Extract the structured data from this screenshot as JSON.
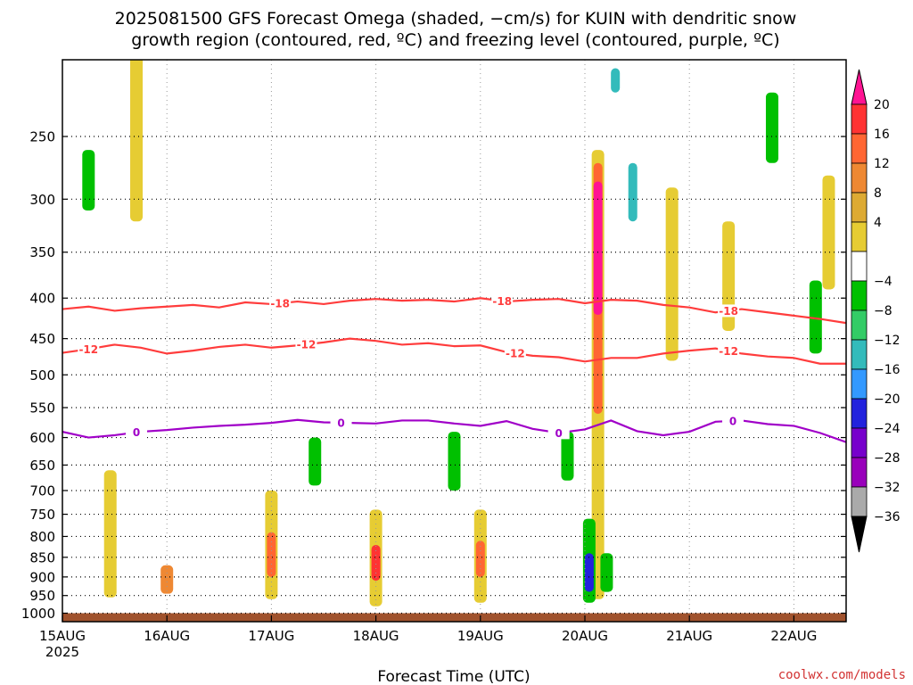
{
  "title": {
    "line1": "2025081500 GFS Forecast Omega (shaded, −cm/s) for KUIN with dendritic snow",
    "line2": "growth region (contoured, red, ºC) and freezing level (contoured, purple, ºC)"
  },
  "credit": "coolwx.com/models",
  "chart_data": {
    "type": "heatmap",
    "xlabel": "Forecast Time (UTC)",
    "x_ticks": [
      "15AUG",
      "16AUG",
      "17AUG",
      "18AUG",
      "19AUG",
      "20AUG",
      "21AUG",
      "22AUG"
    ],
    "x_tick_sub": "2025",
    "x_range_hours": [
      0,
      180
    ],
    "y_scale": "log-pressure",
    "y_range_hpa": [
      1025,
      200
    ],
    "y_ticks": [
      250,
      300,
      350,
      400,
      450,
      500,
      550,
      600,
      650,
      700,
      750,
      800,
      850,
      900,
      950,
      1000
    ],
    "grid": true,
    "colorbar": {
      "labels": [
        "20",
        "16",
        "12",
        "8",
        "4",
        "−4",
        "−8",
        "−12",
        "−16",
        "−20",
        "−24",
        "−28",
        "−32",
        "−36"
      ],
      "colors": [
        "#ff1493",
        "#ff3333",
        "#ff6633",
        "#ee8833",
        "#ddaa33",
        "#e6cc33",
        "#ffffff",
        "#00c000",
        "#33cc66",
        "#33bbbb",
        "#3399ff",
        "#2222dd",
        "#7700cc",
        "#9900bb",
        "#aaaaaa",
        "#000000"
      ]
    },
    "ground": {
      "pressure_hpa": 1000,
      "color": "#a0522d"
    },
    "contours": [
      {
        "level": "-18",
        "color": "#ff3c3c",
        "x_hours": [
          0,
          6,
          12,
          18,
          24,
          30,
          36,
          42,
          48,
          54,
          60,
          66,
          72,
          78,
          84,
          90,
          96,
          102,
          108,
          114,
          120,
          126,
          132,
          138,
          144,
          150,
          156,
          162,
          168,
          174,
          180
        ],
        "y_hpa": [
          413,
          410,
          415,
          412,
          410,
          408,
          411,
          405,
          407,
          404,
          407,
          403,
          401,
          403,
          402,
          404,
          400,
          404,
          402,
          401,
          406,
          402,
          403,
          408,
          411,
          417,
          413,
          417,
          421,
          425,
          430
        ],
        "label_x_hours": [
          50,
          101,
          153
        ]
      },
      {
        "level": "-12",
        "color": "#ff3c3c",
        "x_hours": [
          0,
          6,
          12,
          18,
          24,
          30,
          36,
          42,
          48,
          54,
          60,
          66,
          72,
          78,
          84,
          90,
          96,
          102,
          108,
          114,
          120,
          126,
          132,
          138,
          144,
          150,
          156,
          162,
          168,
          174,
          180
        ],
        "y_hpa": [
          469,
          464,
          458,
          462,
          470,
          466,
          461,
          458,
          462,
          459,
          455,
          450,
          453,
          458,
          456,
          460,
          459,
          468,
          473,
          475,
          481,
          476,
          476,
          470,
          466,
          463,
          470,
          474,
          476,
          484,
          484
        ],
        "label_x_hours": [
          6,
          56,
          104,
          153
        ]
      },
      {
        "level": "0",
        "color": "#a000c8",
        "x_hours": [
          0,
          6,
          12,
          18,
          24,
          30,
          36,
          42,
          48,
          54,
          60,
          66,
          72,
          78,
          84,
          90,
          96,
          102,
          108,
          114,
          120,
          126,
          132,
          138,
          144,
          150,
          156,
          162,
          168,
          174,
          180
        ],
        "y_hpa": [
          590,
          600,
          596,
          590,
          587,
          583,
          580,
          578,
          575,
          570,
          574,
          575,
          576,
          571,
          571,
          576,
          580,
          572,
          585,
          592,
          586,
          571,
          589,
          596,
          590,
          573,
          571,
          577,
          580,
          592,
          608
        ],
        "label_x_hours": [
          17,
          64,
          114,
          154
        ]
      }
    ],
    "omega_blobs": [
      {
        "value": 5,
        "x_hours": 17,
        "p_top": 190,
        "p_bottom": 320
      },
      {
        "value": 5,
        "x_hours": 11,
        "p_top": 660,
        "p_bottom": 955
      },
      {
        "value": 9,
        "x_hours": 24,
        "p_top": 870,
        "p_bottom": 945
      },
      {
        "value": 5,
        "x_hours": 48,
        "p_top": 700,
        "p_bottom": 960
      },
      {
        "value": 12,
        "x_hours": 48,
        "p_top": 790,
        "p_bottom": 900
      },
      {
        "value": 5,
        "x_hours": 72,
        "p_top": 740,
        "p_bottom": 980
      },
      {
        "value": 17,
        "x_hours": 72,
        "p_top": 820,
        "p_bottom": 910
      },
      {
        "value": 5,
        "x_hours": 96,
        "p_top": 740,
        "p_bottom": 970
      },
      {
        "value": 13,
        "x_hours": 96,
        "p_top": 810,
        "p_bottom": 900
      },
      {
        "value": 5,
        "x_hours": 123,
        "p_top": 260,
        "p_bottom": 960
      },
      {
        "value": 12,
        "x_hours": 123,
        "p_top": 270,
        "p_bottom": 560
      },
      {
        "value": 22,
        "x_hours": 123,
        "p_top": 285,
        "p_bottom": 420
      },
      {
        "value": 5,
        "x_hours": 140,
        "p_top": 290,
        "p_bottom": 480
      },
      {
        "value": 5,
        "x_hours": 153,
        "p_top": 320,
        "p_bottom": 440
      },
      {
        "value": 5,
        "x_hours": 176,
        "p_top": 280,
        "p_bottom": 390
      },
      {
        "value": -6,
        "x_hours": 121,
        "p_top": 760,
        "p_bottom": 970
      },
      {
        "value": -22,
        "x_hours": 121,
        "p_top": 840,
        "p_bottom": 940
      },
      {
        "value": -14,
        "x_hours": 127,
        "p_top": 205,
        "p_bottom": 220
      },
      {
        "value": -14,
        "x_hours": 131,
        "p_top": 270,
        "p_bottom": 320
      },
      {
        "value": -6,
        "x_hours": 125,
        "p_top": 840,
        "p_bottom": 940
      },
      {
        "value": -6,
        "x_hours": 163,
        "p_top": 220,
        "p_bottom": 270
      },
      {
        "value": -6,
        "x_hours": 173,
        "p_top": 380,
        "p_bottom": 470
      },
      {
        "value": -6,
        "x_hours": 90,
        "p_top": 590,
        "p_bottom": 700
      },
      {
        "value": -6,
        "x_hours": 58,
        "p_top": 600,
        "p_bottom": 690
      },
      {
        "value": -6,
        "x_hours": 116,
        "p_top": 590,
        "p_bottom": 680
      },
      {
        "value": -6,
        "x_hours": 6,
        "p_top": 260,
        "p_bottom": 310
      }
    ]
  }
}
